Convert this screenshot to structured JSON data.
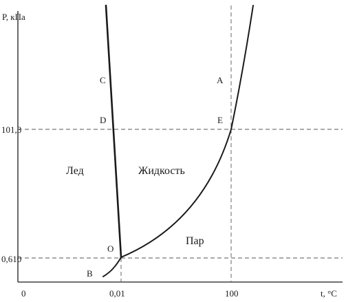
{
  "axes": {
    "y_label": "P, кПа",
    "x_label": "t, °C",
    "origin_label": "0"
  },
  "ticks": {
    "x": [
      "0,01",
      "100"
    ],
    "y": [
      "101,3",
      "0,610"
    ]
  },
  "points": {
    "A": "A",
    "B": "B",
    "C": "C",
    "D": "D",
    "E": "E",
    "O": "O"
  },
  "regions": {
    "ice": "Лед",
    "liquid": "Жидкость",
    "vapor": "Пар"
  }
}
